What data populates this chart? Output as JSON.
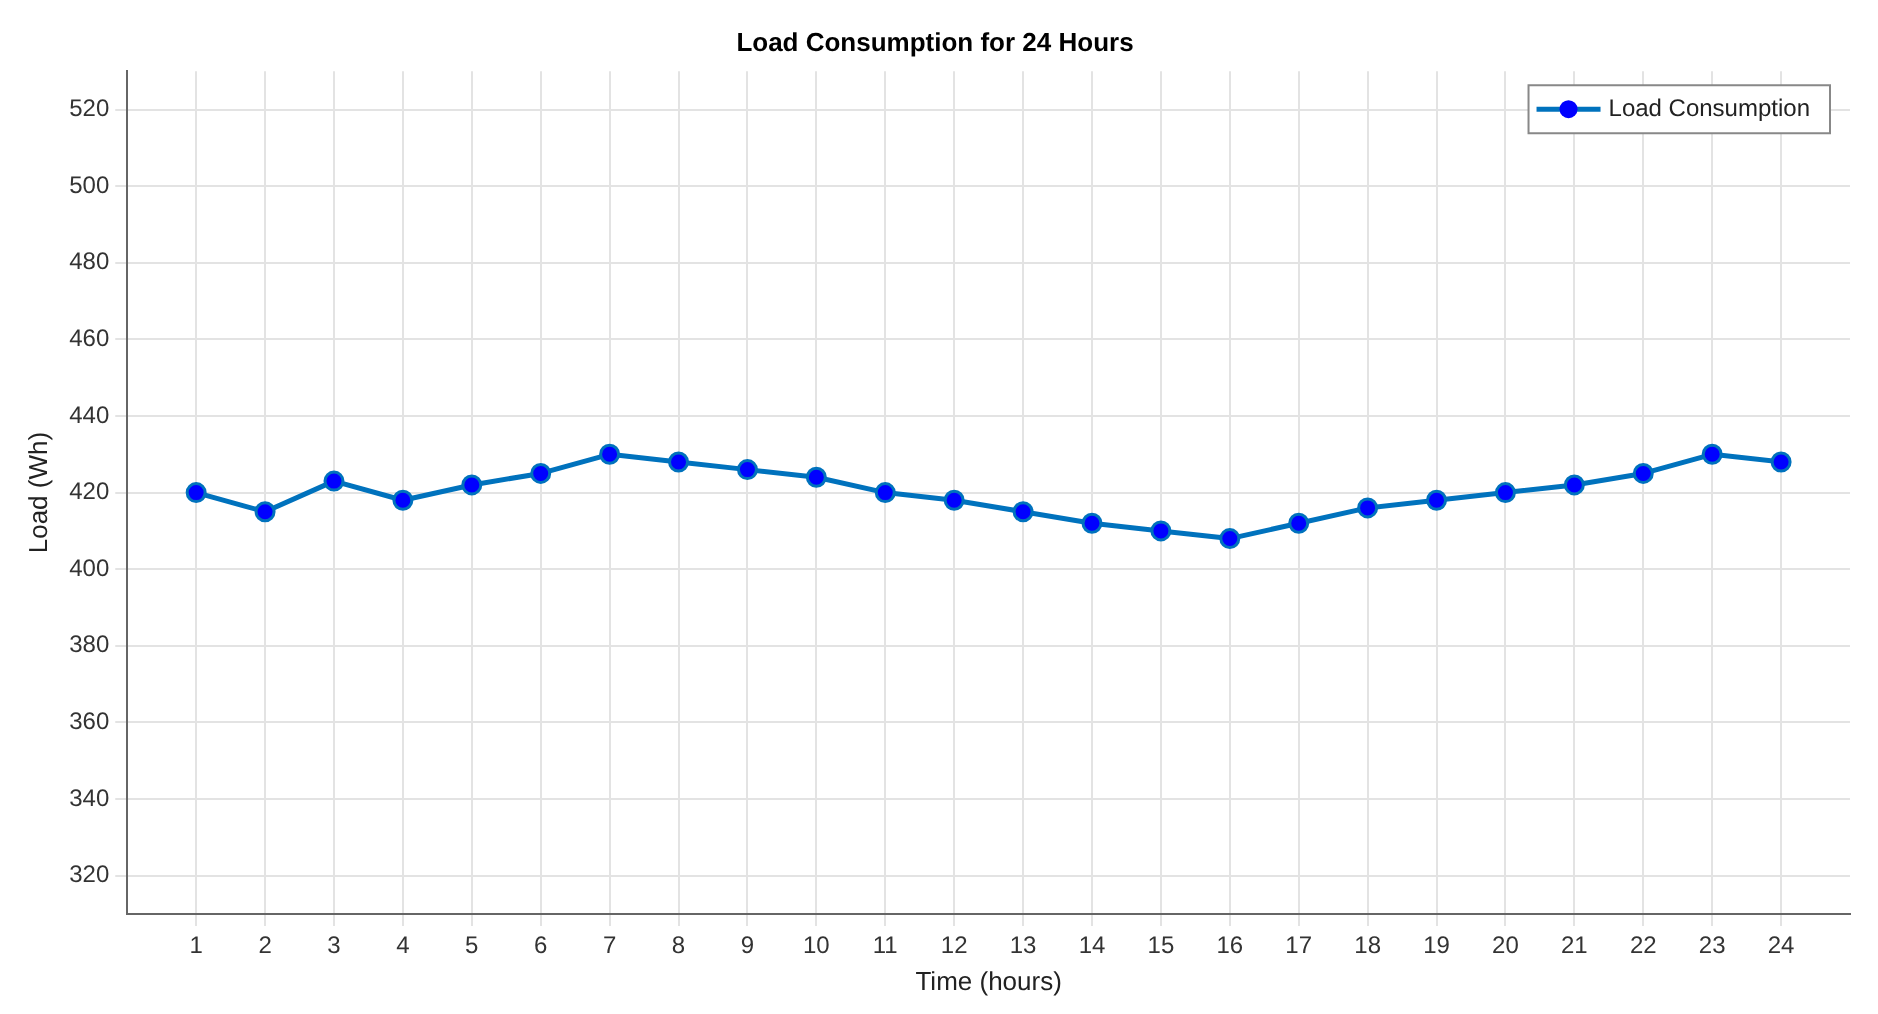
{
  "chart_data": {
    "type": "line",
    "title": "Load Consumption for 24 Hours",
    "xlabel": "Time (hours)",
    "ylabel": "Load (Wh)",
    "x": [
      1,
      2,
      3,
      4,
      5,
      6,
      7,
      8,
      9,
      10,
      11,
      12,
      13,
      14,
      15,
      16,
      17,
      18,
      19,
      20,
      21,
      22,
      23,
      24
    ],
    "series": [
      {
        "name": "Load Consumption",
        "color": "#0072bd",
        "values": [
          420,
          415,
          423,
          418,
          422,
          425,
          430,
          428,
          426,
          424,
          420,
          418,
          415,
          412,
          410,
          408,
          412,
          416,
          418,
          420,
          422,
          425,
          430,
          428
        ]
      }
    ],
    "xlim": [
      0,
      25
    ],
    "xticks": [
      1,
      2,
      3,
      4,
      5,
      6,
      7,
      8,
      9,
      10,
      11,
      12,
      13,
      14,
      15,
      16,
      17,
      18,
      19,
      20,
      21,
      22,
      23,
      24
    ],
    "ylim": [
      310,
      530
    ],
    "yticks": [
      320,
      340,
      360,
      380,
      400,
      420,
      440,
      460,
      480,
      500,
      520
    ],
    "grid": true,
    "legend": "top right",
    "marker": "circle",
    "line_style": "solid"
  }
}
